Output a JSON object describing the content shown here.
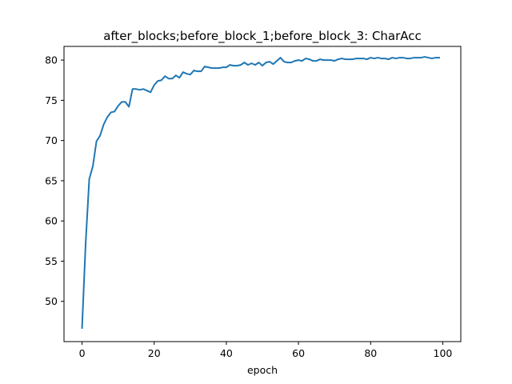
{
  "chart_data": {
    "type": "line",
    "title": "after_blocks;before_block_1;before_block_3: CharAcc",
    "xlabel": "epoch",
    "ylabel": "",
    "xlim": [
      -5,
      105
    ],
    "ylim": [
      45.0,
      81.7
    ],
    "x_ticks": [
      0,
      20,
      40,
      60,
      80,
      100
    ],
    "y_ticks": [
      50,
      55,
      60,
      65,
      70,
      75,
      80
    ],
    "x_tick_labels": [
      "0",
      "20",
      "40",
      "60",
      "80",
      "100"
    ],
    "y_tick_labels": [
      "50",
      "55",
      "60",
      "65",
      "70",
      "75",
      "80"
    ],
    "grid": false,
    "legend": "none",
    "series": [
      {
        "color": "#1f77b4",
        "x": [
          0,
          1,
          2,
          3,
          4,
          5,
          6,
          7,
          8,
          9,
          10,
          11,
          12,
          13,
          14,
          15,
          16,
          17,
          18,
          19,
          20,
          21,
          22,
          23,
          24,
          25,
          26,
          27,
          28,
          29,
          30,
          31,
          32,
          33,
          34,
          35,
          36,
          37,
          38,
          39,
          40,
          41,
          42,
          43,
          44,
          45,
          46,
          47,
          48,
          49,
          50,
          51,
          52,
          53,
          54,
          55,
          56,
          57,
          58,
          59,
          60,
          61,
          62,
          63,
          64,
          65,
          66,
          67,
          68,
          69,
          70,
          71,
          72,
          73,
          74,
          75,
          76,
          77,
          78,
          79,
          80,
          81,
          82,
          83,
          84,
          85,
          86,
          87,
          88,
          89,
          90,
          91,
          92,
          93,
          94,
          95,
          96,
          97,
          98,
          99
        ],
        "values": [
          46.7,
          57.2,
          65.2,
          66.8,
          69.9,
          70.6,
          72.0,
          72.9,
          73.5,
          73.6,
          74.3,
          74.8,
          74.8,
          74.2,
          76.4,
          76.4,
          76.3,
          76.4,
          76.2,
          76.0,
          76.9,
          77.4,
          77.5,
          78.0,
          77.7,
          77.7,
          78.1,
          77.8,
          78.5,
          78.3,
          78.2,
          78.7,
          78.6,
          78.6,
          79.2,
          79.1,
          79.0,
          79.0,
          79.0,
          79.1,
          79.1,
          79.4,
          79.3,
          79.3,
          79.4,
          79.7,
          79.4,
          79.6,
          79.4,
          79.7,
          79.3,
          79.7,
          79.8,
          79.5,
          79.9,
          80.3,
          79.8,
          79.7,
          79.7,
          79.9,
          80.0,
          79.9,
          80.2,
          80.1,
          79.9,
          79.9,
          80.1,
          80.0,
          80.0,
          80.0,
          79.9,
          80.1,
          80.2,
          80.1,
          80.1,
          80.1,
          80.2,
          80.2,
          80.2,
          80.1,
          80.3,
          80.2,
          80.3,
          80.2,
          80.2,
          80.1,
          80.3,
          80.2,
          80.3,
          80.3,
          80.2,
          80.2,
          80.3,
          80.3,
          80.3,
          80.4,
          80.3,
          80.2,
          80.3,
          80.3
        ]
      }
    ]
  }
}
